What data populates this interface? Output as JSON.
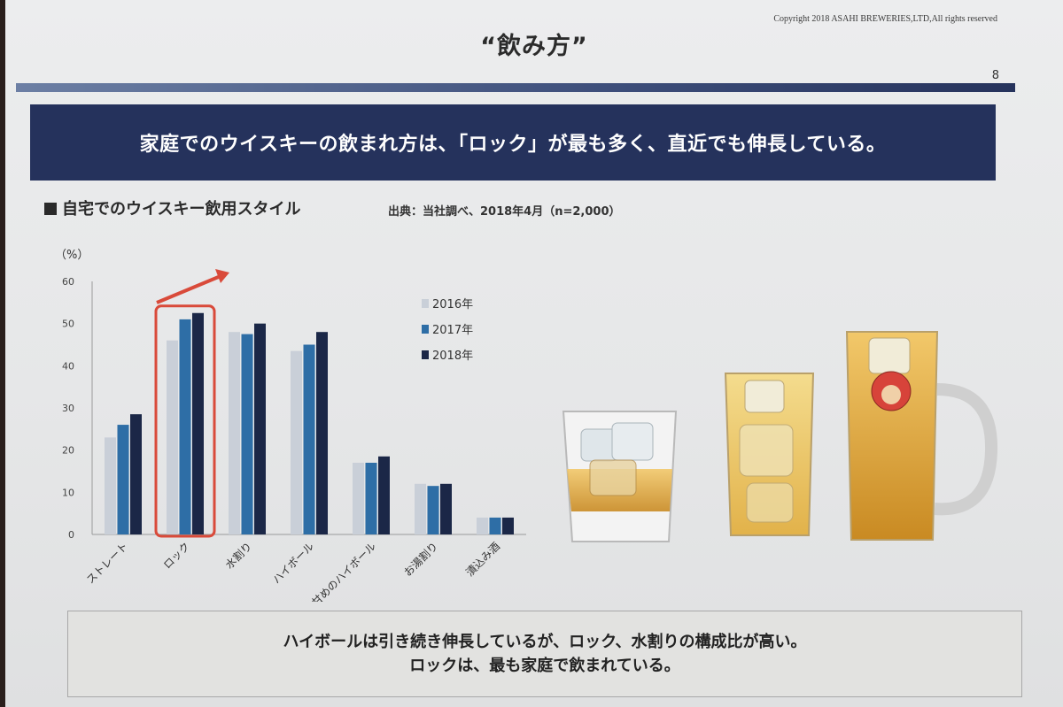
{
  "copyright": "Copyright 2018 ASAHI BREWERIES,LTD,All rights reserved",
  "title": "“飲み方”",
  "page_number": "8",
  "banner_text": "家庭でのウイスキーの飲まれ方は、「ロック」が最も多く、直近でも伸長している。",
  "subtitle": "自宅でのウイスキー飲用スタイル",
  "source": "出典：当社調べ、2018年4月（n=2,000）",
  "colors": {
    "banner": "#25325c",
    "s2016": "#c9cfd8",
    "s2017": "#2e6ea6",
    "s2018": "#1b2747",
    "highlight": "#d94a3a"
  },
  "chart_data": {
    "type": "bar",
    "unit_label": "（%）",
    "ylim": [
      0,
      60
    ],
    "yticks": [
      0,
      10,
      20,
      30,
      40,
      50,
      60
    ],
    "categories": [
      "ストレート",
      "ロック",
      "水割り",
      "ハイボール",
      "甘めのハイボール",
      "お湯割り",
      "漬込み酒"
    ],
    "series": [
      {
        "name": "2016年",
        "values": [
          23,
          46,
          48,
          43.5,
          17,
          12,
          4
        ]
      },
      {
        "name": "2017年",
        "values": [
          26,
          51,
          47.5,
          45,
          17,
          11.5,
          4
        ]
      },
      {
        "name": "2018年",
        "values": [
          28.5,
          52.5,
          50,
          48,
          18.5,
          12,
          4
        ]
      }
    ],
    "highlighted_category": "ロック",
    "legend_position": "top-right"
  },
  "callout": {
    "line1": "ハイボールは引き続き伸長しているが、ロック、水割りの構成比が高い。",
    "line2": "ロックは、最も家庭で飲まれている。"
  }
}
